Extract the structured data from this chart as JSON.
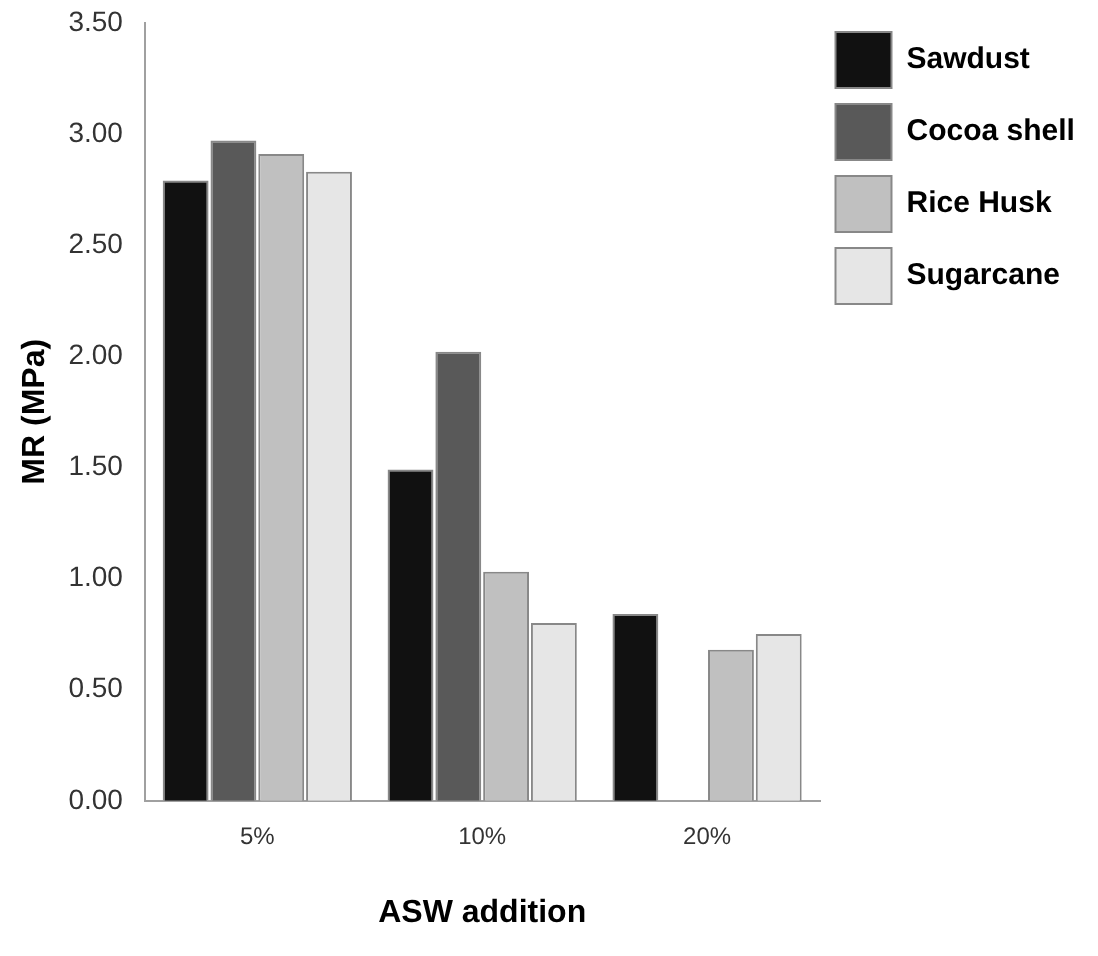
{
  "chart_data": {
    "type": "bar",
    "xlabel": "ASW addition",
    "ylabel": "MR (MPa)",
    "categories": [
      "5%",
      "10%",
      "20%"
    ],
    "series": [
      {
        "name": "Sawdust",
        "color": "#111111",
        "values": [
          2.79,
          1.49,
          0.84
        ]
      },
      {
        "name": "Cocoa shell",
        "color": "#595959",
        "values": [
          2.97,
          2.02,
          null
        ]
      },
      {
        "name": "Rice Husk",
        "color": "#c0c0c0",
        "values": [
          2.91,
          1.03,
          0.68
        ]
      },
      {
        "name": "Sugarcane",
        "color": "#e6e6e6",
        "values": [
          2.83,
          0.8,
          0.75
        ]
      }
    ],
    "ylim": [
      0,
      3.5
    ],
    "yticks": [
      {
        "value": 0,
        "label": "0.00"
      },
      {
        "value": 0.5,
        "label": "0.50"
      },
      {
        "value": 1,
        "label": "1.00"
      },
      {
        "value": 1.5,
        "label": "1.50"
      },
      {
        "value": 2,
        "label": "2.00"
      },
      {
        "value": 2.5,
        "label": "2.50"
      },
      {
        "value": 3,
        "label": "3.00"
      },
      {
        "value": 3.5,
        "label": "3.50"
      }
    ],
    "grid": false,
    "legend": "top right"
  }
}
